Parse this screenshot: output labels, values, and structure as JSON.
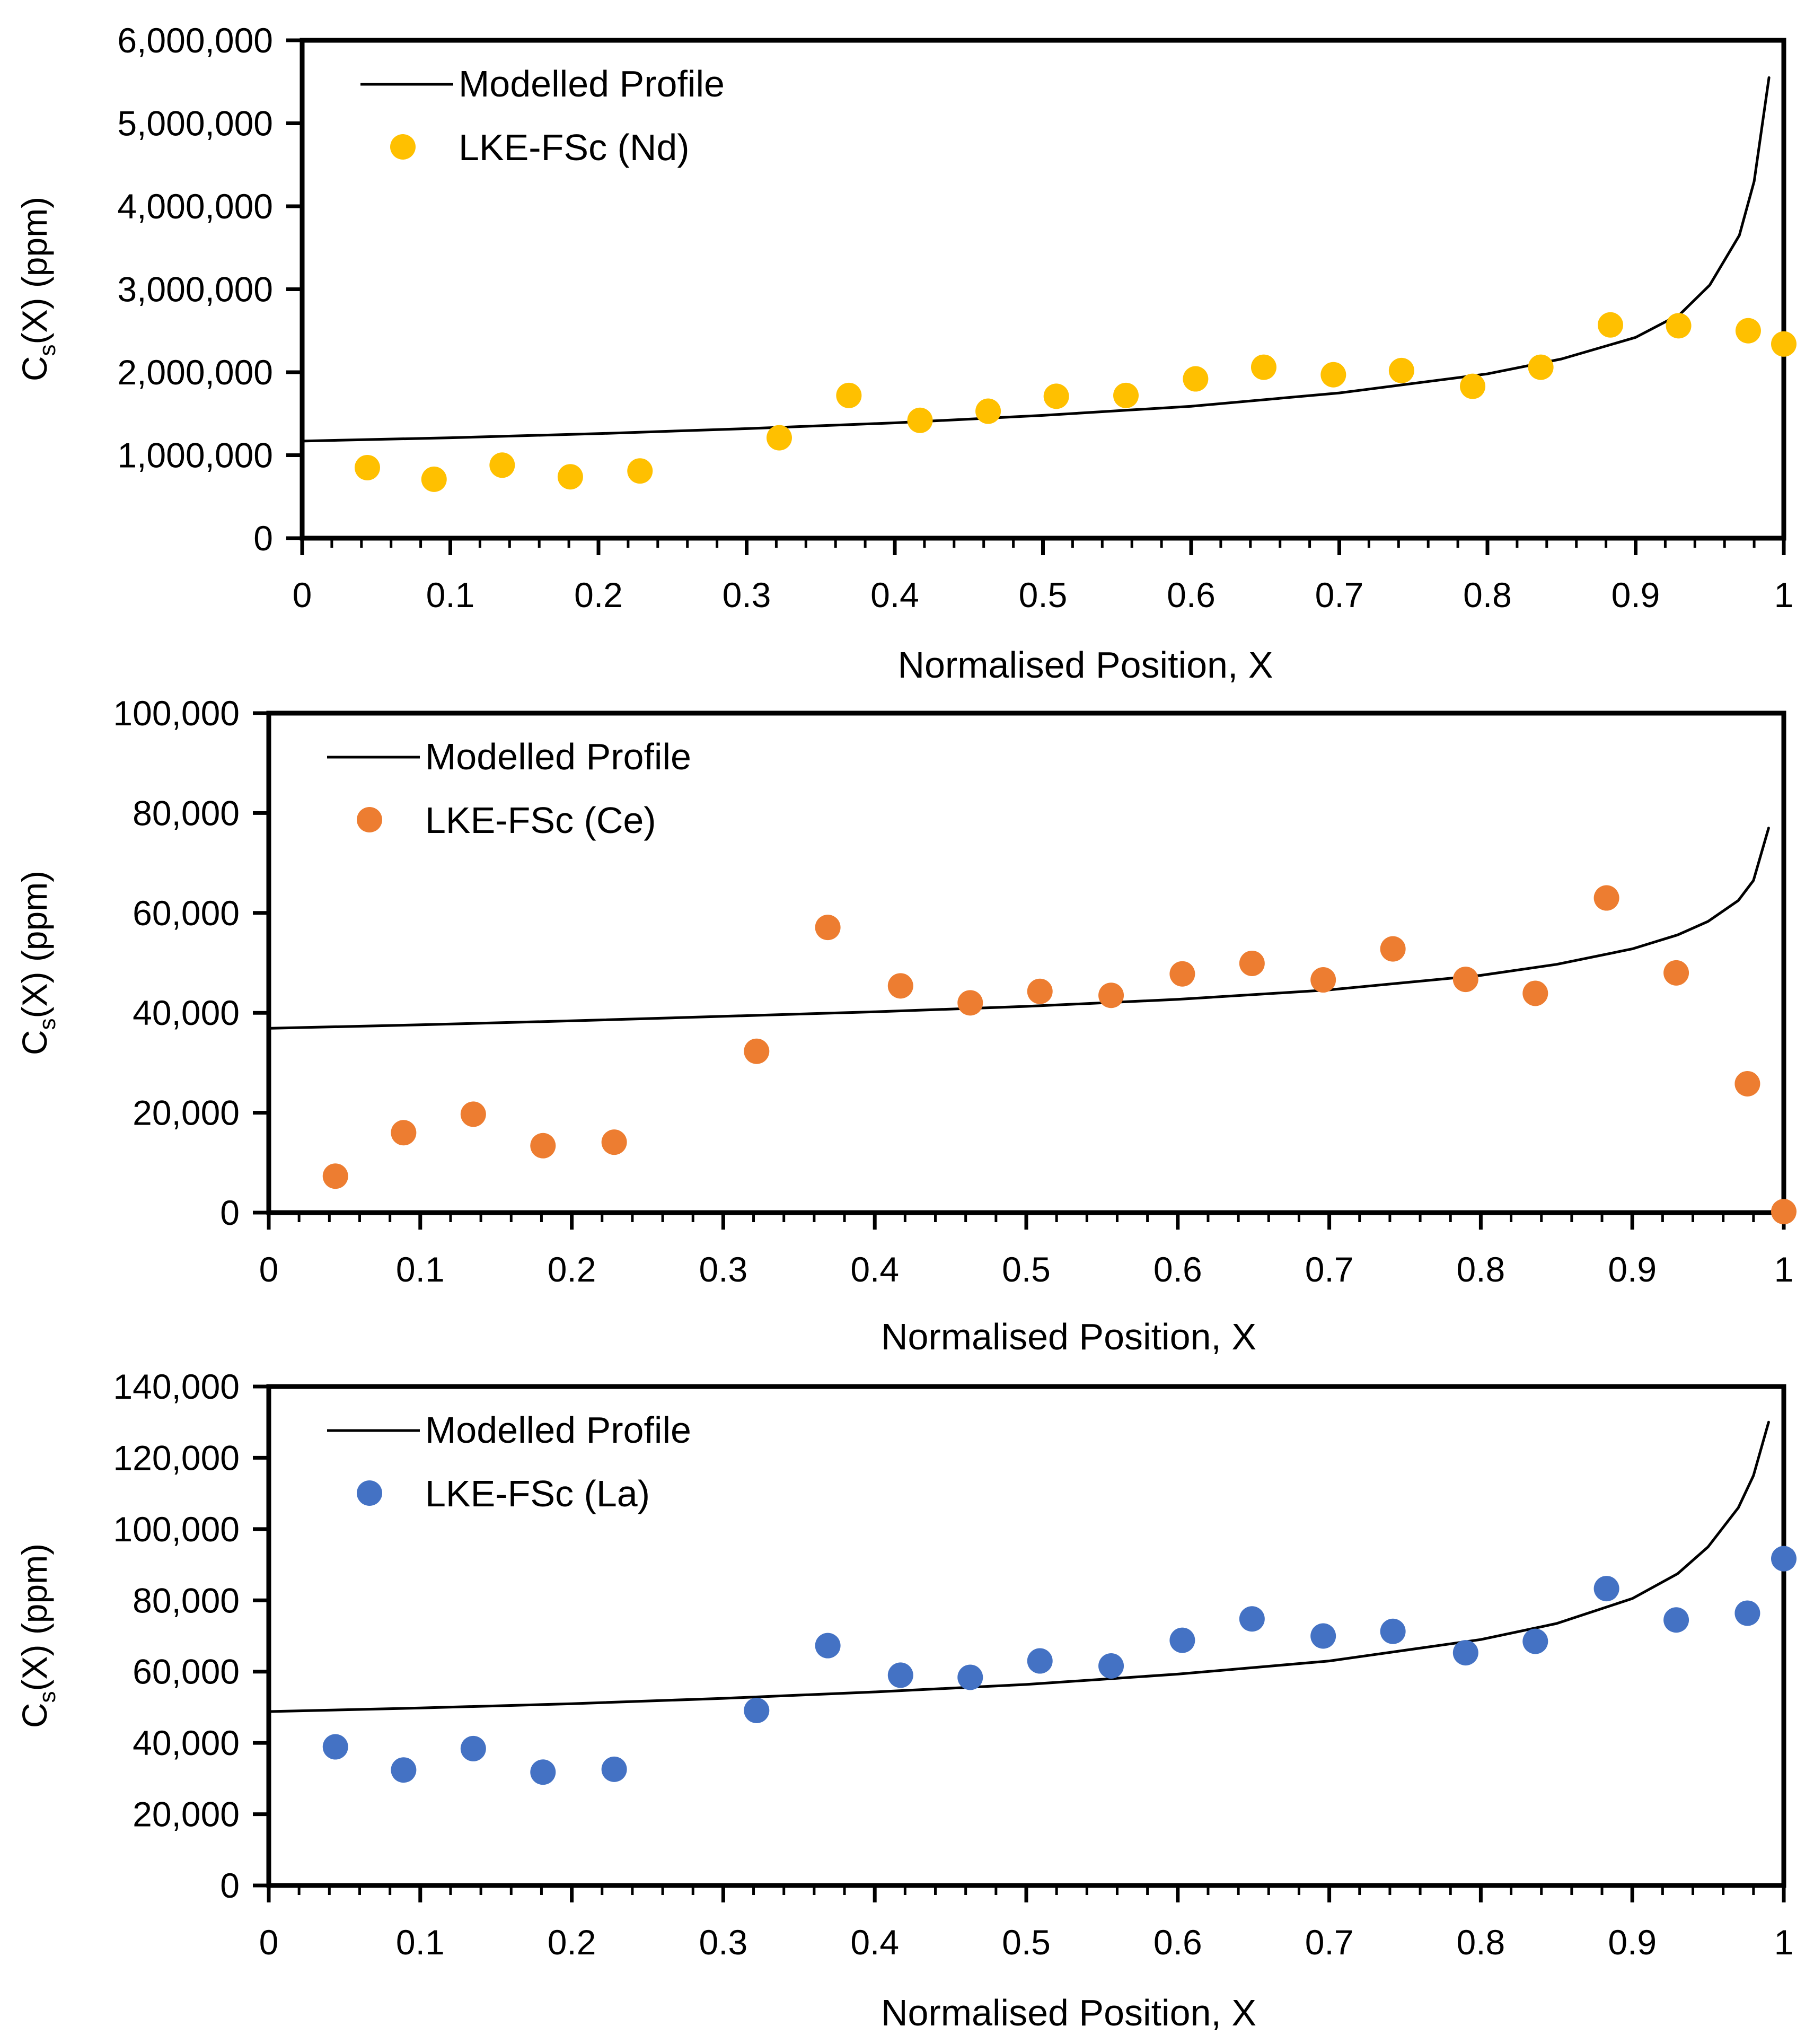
{
  "chart_data": [
    {
      "type": "scatter",
      "element": "Nd",
      "title": "",
      "xlabel": "Normalised Position, X",
      "ylabel_main": "C",
      "ylabel_sub": "s",
      "ylabel_rest": "(X) (ppm)",
      "xlim": [
        0,
        1
      ],
      "ylim": [
        0,
        6000000
      ],
      "x_ticks": [
        "0",
        "0.1",
        "0.2",
        "0.3",
        "0.4",
        "0.5",
        "0.6",
        "0.7",
        "0.8",
        "0.9",
        "1"
      ],
      "y_ticks": [
        "0",
        "1,000,000",
        "2,000,000",
        "3,000,000",
        "4,000,000",
        "5,000,000",
        "6,000,000"
      ],
      "y_step": 1000000,
      "legend_position": "top-left",
      "color": "#FFC000",
      "series": [
        {
          "name": "Modelled Profile",
          "kind": "line",
          "x": [
            0,
            0.1,
            0.2,
            0.3,
            0.4,
            0.5,
            0.6,
            0.7,
            0.8,
            0.85,
            0.9,
            0.93,
            0.95,
            0.97,
            0.98,
            0.99
          ],
          "values": [
            1170000,
            1210000,
            1260000,
            1320000,
            1390000,
            1480000,
            1590000,
            1750000,
            1980000,
            2160000,
            2420000,
            2700000,
            3050000,
            3650000,
            4300000,
            5550000
          ]
        },
        {
          "name": "LKE-FSc (Nd)",
          "kind": "points",
          "x": [
            0.044,
            0.089,
            0.135,
            0.181,
            0.228,
            0.322,
            0.369,
            0.417,
            0.463,
            0.509,
            0.556,
            0.603,
            0.649,
            0.696,
            0.742,
            0.79,
            0.836,
            0.883,
            0.929,
            0.976,
            1.0
          ],
          "values": [
            850000,
            710000,
            880000,
            740000,
            810000,
            1210000,
            1720000,
            1420000,
            1530000,
            1710000,
            1720000,
            1920000,
            2060000,
            1970000,
            2020000,
            1830000,
            2060000,
            2570000,
            2560000,
            2500000,
            2340000
          ]
        }
      ]
    },
    {
      "type": "scatter",
      "element": "Ce",
      "title": "",
      "xlabel": "Normalised Position, X",
      "ylabel_main": "C",
      "ylabel_sub": "s",
      "ylabel_rest": "(X) (ppm)",
      "xlim": [
        0,
        1
      ],
      "ylim": [
        0,
        100000
      ],
      "x_ticks": [
        "0",
        "0.1",
        "0.2",
        "0.3",
        "0.4",
        "0.5",
        "0.6",
        "0.7",
        "0.8",
        "0.9",
        "1"
      ],
      "y_ticks": [
        "0",
        "20,000",
        "40,000",
        "60,000",
        "80,000",
        "100,000"
      ],
      "y_step": 20000,
      "legend_position": "top-left",
      "color": "#ED7D31",
      "series": [
        {
          "name": "Modelled Profile",
          "kind": "line",
          "x": [
            0,
            0.1,
            0.2,
            0.3,
            0.4,
            0.5,
            0.6,
            0.7,
            0.8,
            0.85,
            0.9,
            0.93,
            0.95,
            0.97,
            0.98,
            0.99
          ],
          "values": [
            36900,
            37600,
            38400,
            39300,
            40200,
            41300,
            42700,
            44600,
            47500,
            49700,
            52800,
            55600,
            58300,
            62500,
            66500,
            77000
          ]
        },
        {
          "name": "LKE-FSc (Ce)",
          "kind": "points",
          "x": [
            0.044,
            0.089,
            0.135,
            0.181,
            0.228,
            0.322,
            0.369,
            0.417,
            0.463,
            0.509,
            0.556,
            0.603,
            0.649,
            0.696,
            0.742,
            0.79,
            0.836,
            0.883,
            0.929,
            0.976,
            1.0
          ],
          "values": [
            7300,
            16000,
            19700,
            13400,
            14100,
            32300,
            57100,
            45400,
            42000,
            44300,
            43500,
            47800,
            49900,
            46600,
            52800,
            46700,
            43900,
            63000,
            48000,
            25800,
            200
          ]
        }
      ]
    },
    {
      "type": "scatter",
      "element": "La",
      "title": "",
      "xlabel": "Normalised Position, X",
      "ylabel_main": "C",
      "ylabel_sub": "s",
      "ylabel_rest": "(X) (ppm)",
      "xlim": [
        0,
        1
      ],
      "ylim": [
        0,
        140000
      ],
      "x_ticks": [
        "0",
        "0.1",
        "0.2",
        "0.3",
        "0.4",
        "0.5",
        "0.6",
        "0.7",
        "0.8",
        "0.9",
        "1"
      ],
      "y_ticks": [
        "0",
        "20,000",
        "40,000",
        "60,000",
        "80,000",
        "100,000",
        "120,000",
        "140,000"
      ],
      "y_step": 20000,
      "legend_position": "top-left",
      "color": "#4472C4",
      "series": [
        {
          "name": "Modelled Profile",
          "kind": "line",
          "x": [
            0,
            0.1,
            0.2,
            0.3,
            0.4,
            0.5,
            0.6,
            0.7,
            0.8,
            0.85,
            0.9,
            0.93,
            0.95,
            0.97,
            0.98,
            0.99
          ],
          "values": [
            48800,
            49800,
            51000,
            52500,
            54300,
            56400,
            59300,
            63000,
            69000,
            73500,
            80500,
            87500,
            95000,
            106000,
            115000,
            130000
          ]
        },
        {
          "name": "LKE-FSc (La)",
          "kind": "points",
          "x": [
            0.044,
            0.089,
            0.135,
            0.181,
            0.228,
            0.322,
            0.369,
            0.417,
            0.463,
            0.509,
            0.556,
            0.603,
            0.649,
            0.696,
            0.742,
            0.79,
            0.836,
            0.883,
            0.929,
            0.976,
            1.0
          ],
          "values": [
            38900,
            32400,
            38400,
            31800,
            32600,
            49100,
            67300,
            59000,
            58400,
            63000,
            61600,
            68800,
            74800,
            70000,
            71300,
            65300,
            68500,
            83300,
            74500,
            76400,
            91700
          ]
        }
      ]
    }
  ]
}
